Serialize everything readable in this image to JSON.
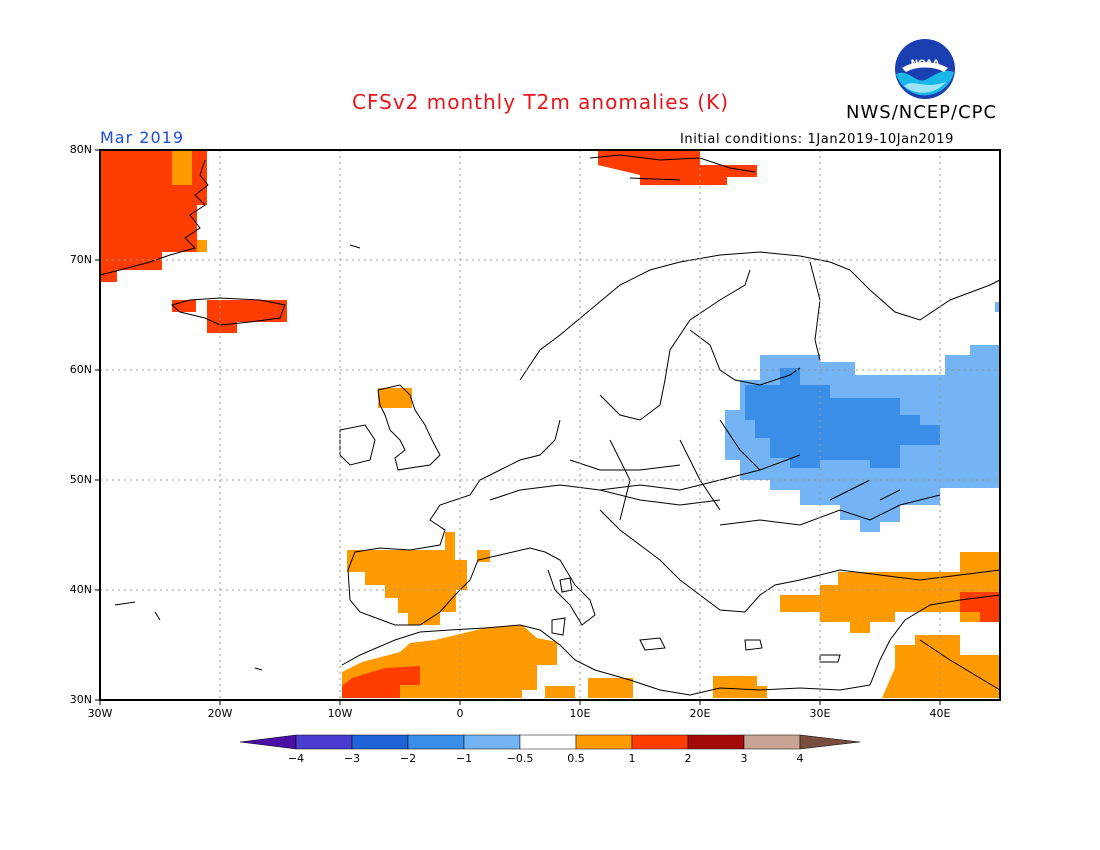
{
  "header": {
    "title": "CFSv2 monthly T2m anomalies (K)",
    "agency": "NWS/NCEP/CPC",
    "month": "Mar 2019",
    "initial_conditions": "Initial conditions: 1Jan2019-10Jan2019",
    "logo_text": "NOAA"
  },
  "axes": {
    "lat_labels": [
      "80N",
      "70N",
      "60N",
      "50N",
      "40N",
      "30N"
    ],
    "lon_labels": [
      "30W",
      "20W",
      "10W",
      "0",
      "10E",
      "20E",
      "30E",
      "40E"
    ]
  },
  "colorbar": {
    "labels": [
      "−4",
      "−3",
      "−2",
      "−1",
      "−0.5",
      "0.5",
      "1",
      "2",
      "3",
      "4"
    ],
    "colors": [
      "#4b0fa8",
      "#4b3dd0",
      "#1f63d6",
      "#3a8ee8",
      "#74b4f4",
      "#ffffff",
      "#ff9b00",
      "#ff3d00",
      "#a30a0a",
      "#c9a494",
      "#7a4e3e"
    ]
  },
  "colors": {
    "title": "#e8161b",
    "month": "#1f4bd8",
    "orange": "#ff9b00",
    "red": "#ff3d00",
    "lightblue": "#74b4f4",
    "blue": "#3a8ee8"
  }
}
